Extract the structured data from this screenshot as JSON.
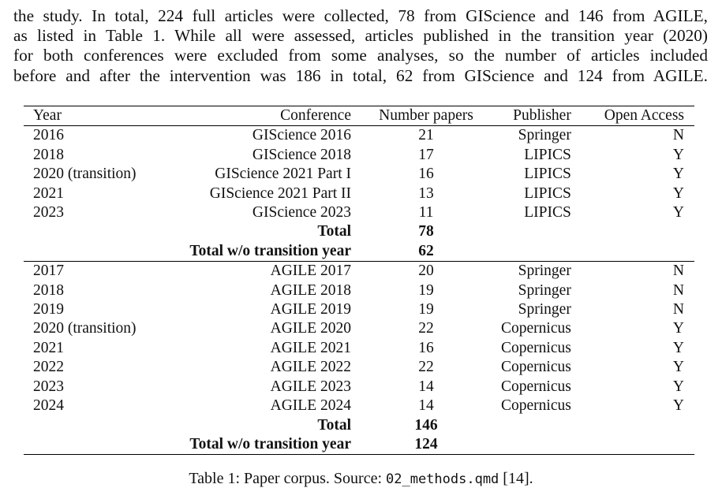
{
  "paragraph": [
    "the study. In total, 224 full articles were collected, 78 from GIScience and 146 from AGILE,",
    "as listed in Table 1. While all were assessed, articles published in the transition year (2020)",
    "for both conferences were excluded from some analyses, so the number of articles included",
    "before and after the intervention was 186 in total, 62 from GIScience and 124 from AGILE."
  ],
  "table": {
    "headers": [
      "Year",
      "Conference",
      "Number papers",
      "Publisher",
      "Open Access"
    ],
    "giscience_rows": [
      [
        "2016",
        "GIScience 2016",
        "21",
        "Springer",
        "N"
      ],
      [
        "2018",
        "GIScience 2018",
        "17",
        "LIPICS",
        "Y"
      ],
      [
        "2020 (transition)",
        "GIScience 2021 Part I",
        "16",
        "LIPICS",
        "Y"
      ],
      [
        "2021",
        "GIScience 2021 Part II",
        "13",
        "LIPICS",
        "Y"
      ],
      [
        "2023",
        "GIScience 2023",
        "11",
        "LIPICS",
        "Y"
      ]
    ],
    "giscience_totals": [
      [
        "Total",
        "78"
      ],
      [
        "Total w/o transition year",
        "62"
      ]
    ],
    "agile_rows": [
      [
        "2017",
        "AGILE 2017",
        "20",
        "Springer",
        "N"
      ],
      [
        "2018",
        "AGILE 2018",
        "19",
        "Springer",
        "N"
      ],
      [
        "2019",
        "AGILE 2019",
        "19",
        "Springer",
        "N"
      ],
      [
        "2020 (transition)",
        "AGILE 2020",
        "22",
        "Copernicus",
        "Y"
      ],
      [
        "2021",
        "AGILE 2021",
        "16",
        "Copernicus",
        "Y"
      ],
      [
        "2022",
        "AGILE 2022",
        "22",
        "Copernicus",
        "Y"
      ],
      [
        "2023",
        "AGILE 2023",
        "14",
        "Copernicus",
        "Y"
      ],
      [
        "2024",
        "AGILE 2024",
        "14",
        "Copernicus",
        "Y"
      ]
    ],
    "agile_totals": [
      [
        "Total",
        "146"
      ],
      [
        "Total w/o transition year",
        "124"
      ]
    ]
  },
  "caption": {
    "prefix": "Table 1: Paper corpus. Source: ",
    "file": "02_methods.qmd",
    "suffix": " [14]."
  }
}
